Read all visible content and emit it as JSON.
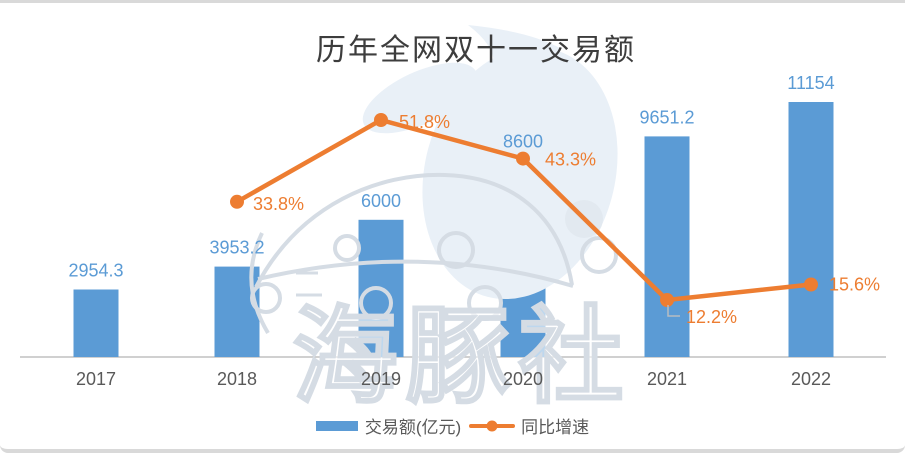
{
  "title": "历年全网双十一交易额",
  "watermark_text": "海豚社",
  "legend": {
    "bar_label": "交易额(亿元)",
    "line_label": "同比增速"
  },
  "colors": {
    "bar": "#5B9BD5",
    "bar_value_label": "#5B9BD5",
    "line": "#ED7D31",
    "line_value_label": "#ED7D31",
    "axis_line": "#C0C0C0",
    "category_label": "#595959",
    "title": "#3D3D3D",
    "legend_text": "#595959",
    "leader_line": "#B7BCC2",
    "watermark_stroke": "#D5DCE4",
    "watermark_fill": "#E9F0F7"
  },
  "chart_data": {
    "type": "combo bar+line",
    "title": "历年全网双十一交易额",
    "categories": [
      "2017",
      "2018",
      "2019",
      "2020",
      "2021",
      "2022"
    ],
    "series": [
      {
        "name": "交易额(亿元)",
        "type": "bar",
        "unit": "亿元",
        "values": [
          2954.3,
          3953.2,
          6000,
          8600,
          9651.2,
          11154
        ],
        "data_labels": [
          "2954.3",
          "3953.2",
          "6000",
          "8600",
          "9651.2",
          "11154"
        ]
      },
      {
        "name": "同比增速",
        "type": "line",
        "unit": "%",
        "values": [
          null,
          33.8,
          51.8,
          43.3,
          12.2,
          15.6
        ],
        "data_labels": [
          null,
          "33.8%",
          "51.8%",
          "43.3%",
          "12.2%",
          "15.6%"
        ]
      }
    ],
    "legend_position": "bottom",
    "grid": false,
    "value_axes_hidden": true,
    "category_axis_line": true,
    "bar_axis_min": 0
  }
}
